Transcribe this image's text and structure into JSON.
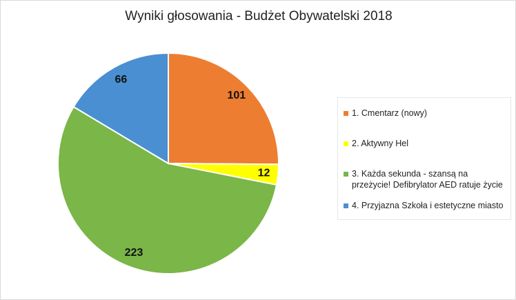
{
  "chart_data": {
    "type": "pie",
    "title": "Wyniki głosowania - Budżet Obywatelski 2018",
    "categories": [
      "1. Cmentarz (nowy)",
      "2. Aktywny Hel",
      "3. Każda sekunda - szansą na przeżycie! Defibrylator AED ratuje życie",
      "4. Przyjazna Szkoła i estetyczne miasto"
    ],
    "values": [
      101,
      12,
      223,
      66
    ],
    "colors": [
      "#ed7d31",
      "#ffff00",
      "#7ab648",
      "#4a8fd2"
    ],
    "legend": "right"
  }
}
